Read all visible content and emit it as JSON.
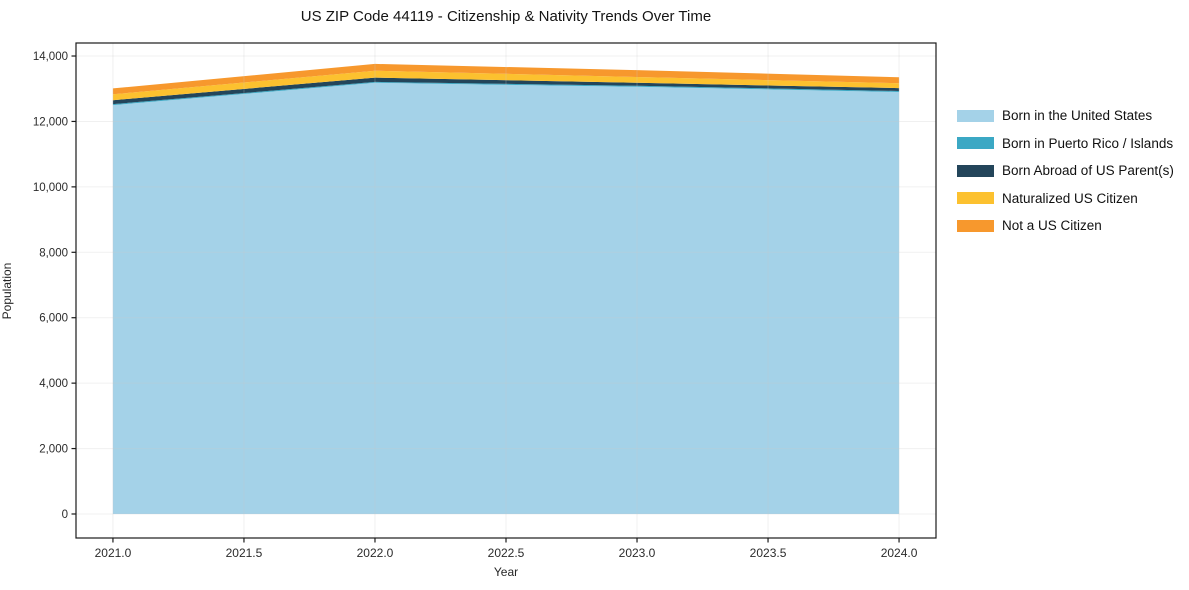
{
  "chart_data": {
    "type": "area",
    "stacked": true,
    "title": "US ZIP Code 44119 - Citizenship & Nativity Trends Over Time",
    "xlabel": "Year",
    "ylabel": "Population",
    "x": [
      2021,
      2022,
      2023,
      2024
    ],
    "series": [
      {
        "name": "Born in the United States",
        "color": "#a4d2e8",
        "values": [
          12500,
          13180,
          13060,
          12900
        ]
      },
      {
        "name": "Born in Puerto Rico / Islands",
        "color": "#3ba8c4",
        "values": [
          30,
          30,
          30,
          30
        ]
      },
      {
        "name": "Born Abroad of US Parent(s)",
        "color": "#23455a",
        "values": [
          120,
          130,
          90,
          90
        ]
      },
      {
        "name": "Naturalized US Citizen",
        "color": "#fcc12f",
        "values": [
          180,
          210,
          180,
          150
        ]
      },
      {
        "name": "Not a US Citizen",
        "color": "#f7982d",
        "values": [
          180,
          210,
          210,
          180
        ]
      }
    ],
    "totals": [
      13010,
      13760,
      13570,
      13350
    ],
    "xticks": [
      2021.0,
      2021.5,
      2022.0,
      2022.5,
      2023.0,
      2023.5,
      2024.0
    ],
    "yticks": [
      0,
      2000,
      4000,
      6000,
      8000,
      10000,
      12000,
      14000
    ],
    "xlim": [
      2020.859,
      2024.141
    ],
    "ylim": [
      -734,
      14398
    ],
    "grid": true,
    "grid_color": "#c8c8c8",
    "axis_color": "#1a1a1a",
    "legend_position": "right-outside"
  }
}
